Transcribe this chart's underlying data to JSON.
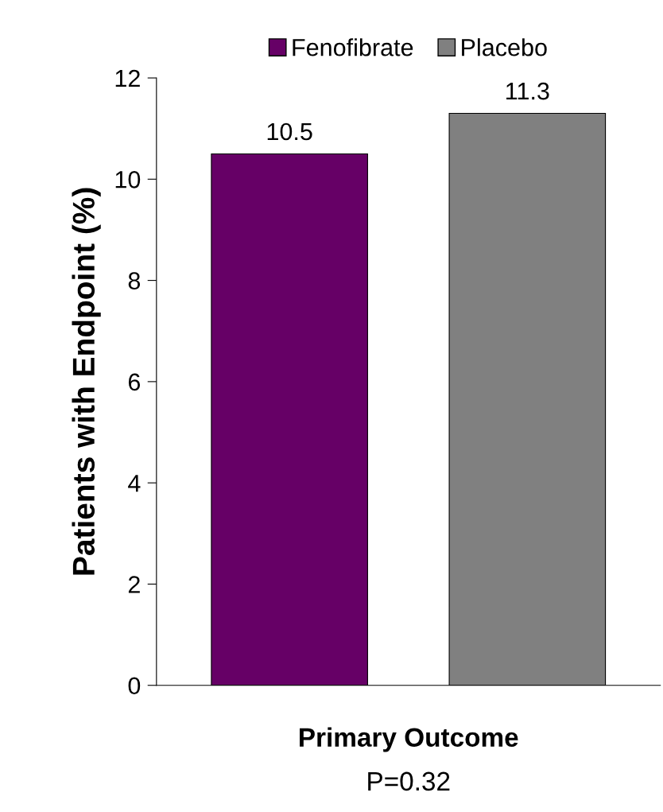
{
  "chart_data": {
    "type": "bar",
    "ylabel": "Patients with Endpoint (%)",
    "xlabel": "Primary Outcome",
    "categories": [
      null
    ],
    "series": [
      {
        "name": "Fenofibrate",
        "color": "#660066",
        "values": [
          10.5
        ]
      },
      {
        "name": "Placebo",
        "color": "#808080",
        "values": [
          11.3
        ]
      }
    ],
    "ylim": [
      0,
      12
    ],
    "yticks": [
      0,
      2,
      4,
      6,
      8,
      10,
      12
    ],
    "data_labels": true,
    "grid": false,
    "legend": "top",
    "annotations": [
      "P=0.32"
    ]
  }
}
